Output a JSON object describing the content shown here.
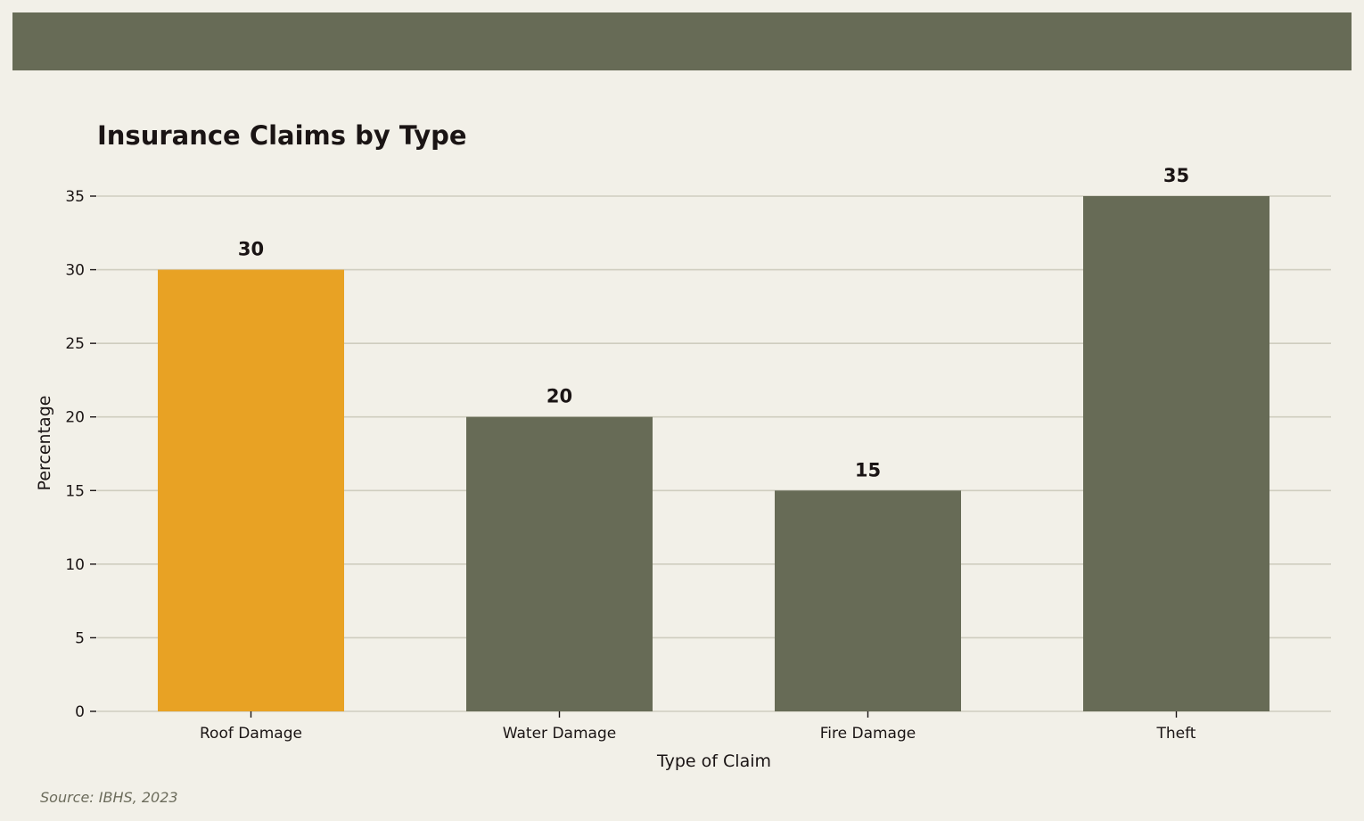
{
  "banner_color": "#676b56",
  "source": "Source: IBHS, 2023",
  "chart_data": {
    "type": "bar",
    "title": "Insurance Claims by Type",
    "xlabel": "Type of Claim",
    "ylabel": "Percentage",
    "categories": [
      "Roof Damage",
      "Water Damage",
      "Fire Damage",
      "Theft"
    ],
    "values": [
      30,
      20,
      15,
      35
    ],
    "data_labels": [
      "30",
      "20",
      "15",
      "35"
    ],
    "colors": [
      "#e8a224",
      "#676b56",
      "#676b56",
      "#676b56"
    ],
    "yticks": [
      0,
      5,
      10,
      15,
      20,
      25,
      30,
      35
    ],
    "ylim": [
      0,
      37.5
    ],
    "grid": true,
    "highlight": "Roof Damage"
  }
}
